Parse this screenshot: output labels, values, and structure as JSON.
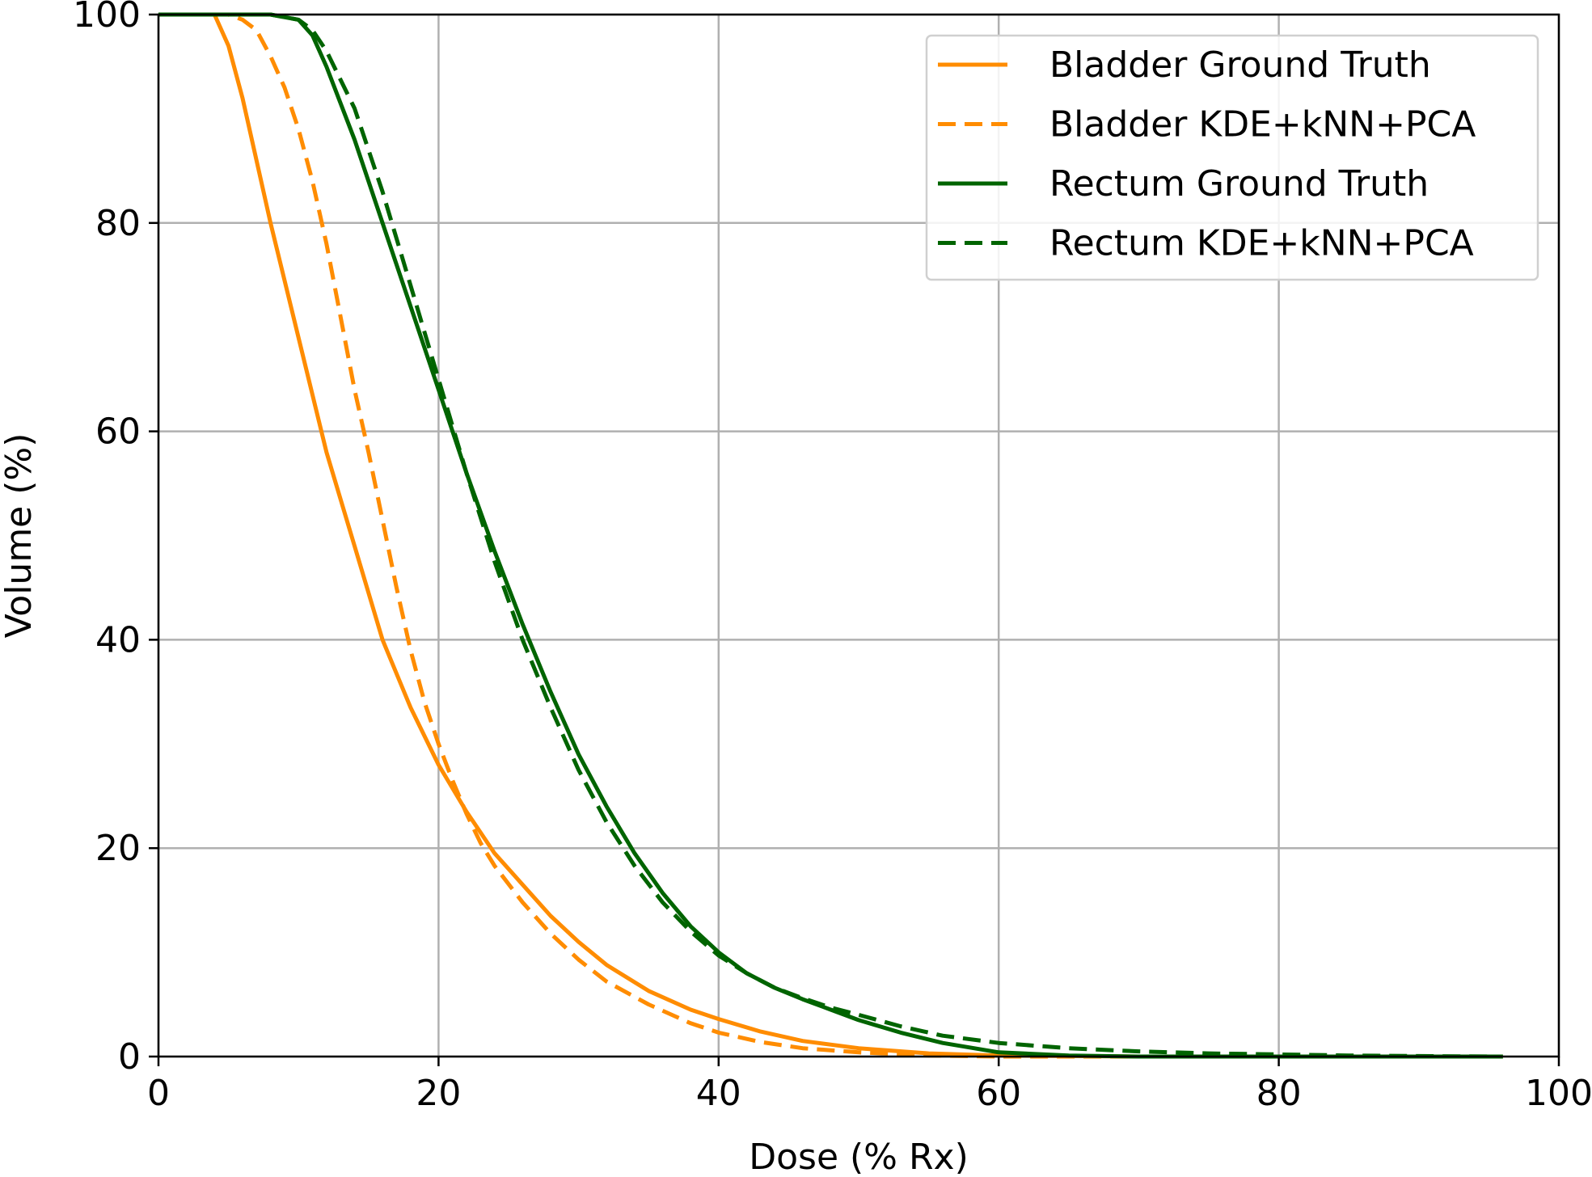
{
  "chart_data": {
    "type": "line",
    "xlabel": "Dose (% Rx)",
    "ylabel": "Volume (%)",
    "xlim": [
      0,
      100
    ],
    "ylim": [
      0,
      100
    ],
    "xticks": [
      0,
      20,
      40,
      60,
      80,
      100
    ],
    "yticks": [
      0,
      20,
      40,
      60,
      80,
      100
    ],
    "grid": true,
    "legend_position": "top-right",
    "series": [
      {
        "name": "Bladder Ground Truth",
        "color": "#ff8c00",
        "dash": "solid",
        "x": [
          0,
          4,
          5,
          6,
          8,
          10,
          12,
          14,
          16,
          18,
          20,
          22,
          24,
          26,
          28,
          30,
          32,
          35,
          38,
          40,
          43,
          46,
          50,
          55,
          60,
          70,
          80,
          90,
          96
        ],
        "y": [
          100,
          100,
          97,
          92,
          80,
          69,
          58,
          49,
          40,
          33.5,
          28,
          23.5,
          19.5,
          16.5,
          13.5,
          11,
          8.8,
          6.3,
          4.5,
          3.6,
          2.4,
          1.5,
          0.8,
          0.3,
          0.1,
          0,
          0,
          0,
          0
        ]
      },
      {
        "name": "Bladder KDE+kNN+PCA",
        "color": "#ff8c00",
        "dash": "dashed",
        "x": [
          0,
          5,
          6,
          7,
          8,
          9,
          10,
          11,
          12,
          13,
          14,
          15,
          16,
          17,
          18,
          19,
          20,
          21,
          22,
          23,
          24,
          26,
          28,
          30,
          32,
          35,
          38,
          40,
          43,
          46,
          50,
          55,
          60,
          70,
          80,
          90,
          96
        ],
        "y": [
          100,
          100,
          99.5,
          98.5,
          96,
          93,
          89,
          84,
          78,
          71,
          64,
          58,
          51.5,
          45,
          39,
          34,
          30,
          26.5,
          23.3,
          20.5,
          18.3,
          14.8,
          11.8,
          9.3,
          7.2,
          5,
          3.2,
          2.3,
          1.4,
          0.8,
          0.4,
          0.1,
          0,
          0,
          0,
          0,
          0
        ]
      },
      {
        "name": "Rectum Ground Truth",
        "color": "#006400",
        "dash": "solid",
        "x": [
          0,
          8,
          10,
          11,
          12,
          14,
          16,
          18,
          20,
          22,
          24,
          26,
          28,
          30,
          32,
          34,
          36,
          38,
          40,
          42,
          44,
          46,
          48,
          50,
          53,
          56,
          60,
          65,
          70,
          80,
          90,
          96
        ],
        "y": [
          100,
          100,
          99.5,
          98,
          95,
          88,
          80,
          72,
          64,
          56,
          48.5,
          41.5,
          35,
          29,
          24,
          19.5,
          15.7,
          12.5,
          10,
          8,
          6.6,
          5.5,
          4.5,
          3.5,
          2.3,
          1.3,
          0.4,
          0.1,
          0,
          0,
          0,
          0
        ]
      },
      {
        "name": "Rectum KDE+kNN+PCA",
        "color": "#006400",
        "dash": "dashed",
        "x": [
          0,
          8,
          10,
          11,
          12,
          14,
          16,
          18,
          20,
          22,
          24,
          26,
          28,
          30,
          32,
          34,
          36,
          38,
          40,
          42,
          44,
          46,
          48,
          50,
          53,
          56,
          60,
          65,
          70,
          75,
          80,
          85,
          90,
          96
        ],
        "y": [
          100,
          100,
          99.5,
          98.5,
          96.5,
          91,
          83,
          74,
          65,
          56,
          47.5,
          40,
          33.5,
          27.5,
          22.5,
          18.3,
          14.8,
          12,
          9.7,
          8,
          6.6,
          5.6,
          4.7,
          4,
          2.9,
          2,
          1.3,
          0.8,
          0.5,
          0.3,
          0.2,
          0.1,
          0.05,
          0
        ]
      }
    ]
  }
}
